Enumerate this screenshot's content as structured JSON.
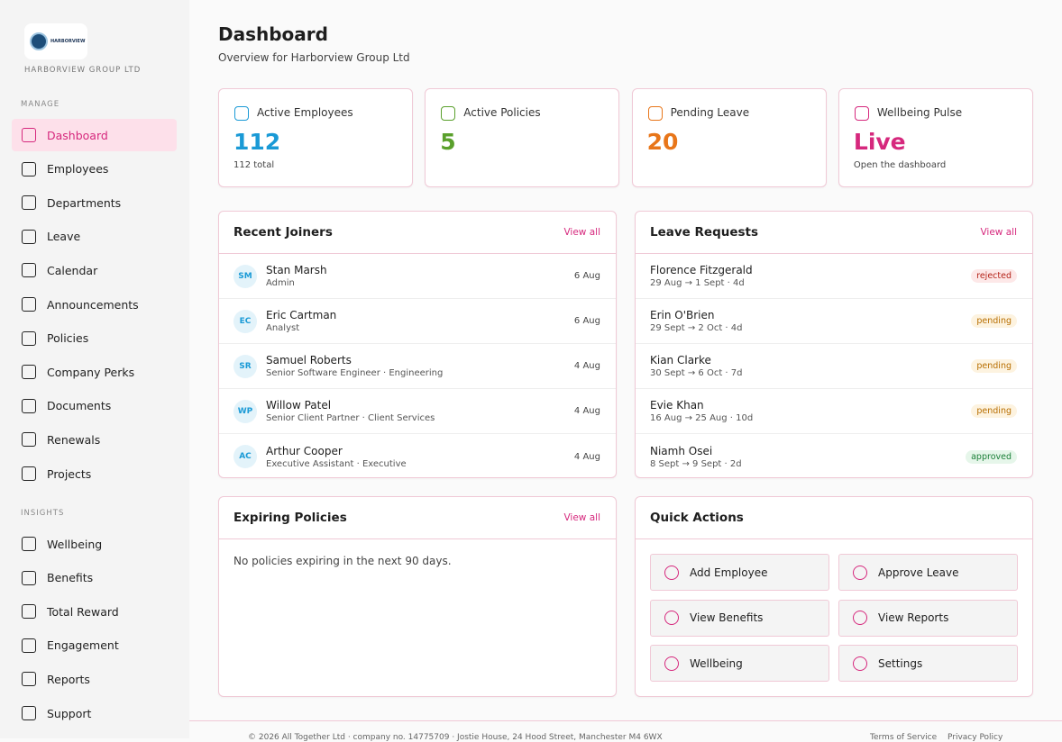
{
  "sidebar": {
    "logo_text": "HARBORVIEW",
    "company": "HARBORVIEW GROUP LTD",
    "sections": [
      {
        "label": "MANAGE",
        "items": [
          "Dashboard",
          "Employees",
          "Departments",
          "Leave",
          "Calendar",
          "Announcements",
          "Policies",
          "Company Perks",
          "Documents",
          "Renewals",
          "Projects"
        ]
      },
      {
        "label": "INSIGHTS",
        "items": [
          "Wellbeing",
          "Benefits",
          "Total Reward",
          "Engagement",
          "Reports",
          "Support"
        ]
      }
    ]
  },
  "header": {
    "title": "Dashboard",
    "subtitle": "Overview for Harborview Group Ltd"
  },
  "stats": [
    {
      "label": "Active Employees",
      "value": 112,
      "note": "112 total",
      "color": "#1a9ad6"
    },
    {
      "label": "Active Policies",
      "value": 5,
      "color": "#5aa02c"
    },
    {
      "label": "Pending Leave",
      "value": 20,
      "color": "#e8761a"
    },
    {
      "label": "Wellbeing Pulse",
      "value": "Live",
      "note": "Open the dashboard",
      "color": "#d6287d"
    }
  ],
  "recent_joiners": {
    "title": "Recent Joiners",
    "view_all": "View all",
    "rows": [
      {
        "initials": "SM",
        "name": "Stan Marsh",
        "role": "Admin",
        "date": "6 Aug"
      },
      {
        "initials": "EC",
        "name": "Eric Cartman",
        "role": "Analyst",
        "date": "6 Aug"
      },
      {
        "initials": "SR",
        "name": "Samuel Roberts",
        "role": "Senior Software Engineer · Engineering",
        "date": "4 Aug"
      },
      {
        "initials": "WP",
        "name": "Willow Patel",
        "role": "Senior Client Partner · Client Services",
        "date": "4 Aug"
      },
      {
        "initials": "AC",
        "name": "Arthur Cooper",
        "role": "Executive Assistant · Executive",
        "date": "4 Aug"
      }
    ]
  },
  "leave_requests": {
    "title": "Leave Requests",
    "view_all": "View all",
    "rows": [
      {
        "name": "Florence Fitzgerald",
        "dates": "29 Aug → 1 Sept · 4d",
        "status": "rejected",
        "status_color": "#b42318",
        "status_bg": "#fde8e8"
      },
      {
        "name": "Erin O'Brien",
        "dates": "29 Sept → 2 Oct · 4d",
        "status": "pending",
        "status_color": "#b76e00",
        "status_bg": "#fdf3e0"
      },
      {
        "name": "Kian Clarke",
        "dates": "30 Sept → 6 Oct · 7d",
        "status": "pending",
        "status_color": "#b76e00",
        "status_bg": "#fdf3e0"
      },
      {
        "name": "Evie Khan",
        "dates": "16 Aug → 25 Aug · 10d",
        "status": "pending",
        "status_color": "#b76e00",
        "status_bg": "#fdf3e0"
      },
      {
        "name": "Niamh Osei",
        "dates": "8 Sept → 9 Sept · 2d",
        "status": "approved",
        "status_color": "#1a7f37",
        "status_bg": "#e6f6ea"
      }
    ]
  },
  "expiring_policies": {
    "title": "Expiring Policies",
    "view_all": "View all",
    "empty": "No policies expiring in the next 90 days."
  },
  "quick_actions": {
    "title": "Quick Actions",
    "actions": [
      "Add Employee",
      "Approve Leave",
      "View Benefits",
      "View Reports",
      "Wellbeing",
      "Settings"
    ]
  },
  "footer": {
    "text": "© 2026 All Together Ltd · company no. 14775709 · Jostie House, 24 Hood Street, Manchester M4 6WX",
    "links": [
      "Terms of Service",
      "Privacy Policy"
    ]
  }
}
